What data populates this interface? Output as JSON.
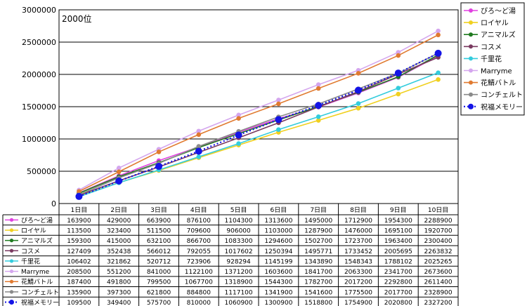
{
  "chart_data": {
    "type": "line",
    "annotation": "2000位",
    "ylim": [
      0,
      3000000
    ],
    "yticks": [
      0,
      500000,
      1000000,
      1500000,
      2000000,
      2500000,
      3000000
    ],
    "categories": [
      "1日目",
      "2日目",
      "3日目",
      "4日目",
      "5日目",
      "6日目",
      "7日目",
      "8日目",
      "9日目",
      "10日目"
    ],
    "grid": true,
    "legend_position": "right",
    "series": [
      {
        "name": "ぴろ～ど湯",
        "color": "#e040e0",
        "values": [
          163900,
          429000,
          663900,
          876100,
          1104300,
          1313600,
          1495000,
          1712900,
          1954300,
          2288900
        ]
      },
      {
        "name": "ロイヤル",
        "color": "#f0d020",
        "values": [
          113500,
          323400,
          511500,
          709600,
          906000,
          1103000,
          1287900,
          1476000,
          1695100,
          1920700
        ]
      },
      {
        "name": "アニマルズ",
        "color": "#1f7a1f",
        "values": [
          159300,
          415000,
          632100,
          866700,
          1083300,
          1294600,
          1502700,
          1723700,
          1963400,
          2300400
        ]
      },
      {
        "name": "コスメ",
        "color": "#7a3a60",
        "values": [
          127409,
          352438,
          566012,
          792055,
          1017602,
          1250394,
          1495771,
          1733452,
          2005695,
          2263832
        ]
      },
      {
        "name": "千里花",
        "color": "#33ccdd",
        "values": [
          106402,
          321862,
          520712,
          723906,
          928294,
          1145199,
          1343890,
          1548343,
          1788102,
          2025265
        ]
      },
      {
        "name": "Marryme",
        "color": "#d4a6ee",
        "values": [
          208500,
          551200,
          841000,
          1122100,
          1371200,
          1603600,
          1841700,
          2063300,
          2341700,
          2673600
        ]
      },
      {
        "name": "花鯖バトル",
        "color": "#e07a30",
        "values": [
          187400,
          491800,
          799500,
          1067700,
          1318900,
          1544300,
          1782700,
          2017200,
          2292800,
          2611400
        ]
      },
      {
        "name": "コンチェルト",
        "color": "#8a8a8a",
        "values": [
          135900,
          397300,
          621800,
          884800,
          1117100,
          1341900,
          1541600,
          1775500,
          2017700,
          2328900
        ]
      },
      {
        "name": "祝福メモリー",
        "color": "#1414e6",
        "dotted": true,
        "values": [
          109500,
          349400,
          575700,
          810000,
          1060900,
          1300900,
          1518800,
          1754900,
          2020800,
          2327200
        ]
      }
    ]
  }
}
